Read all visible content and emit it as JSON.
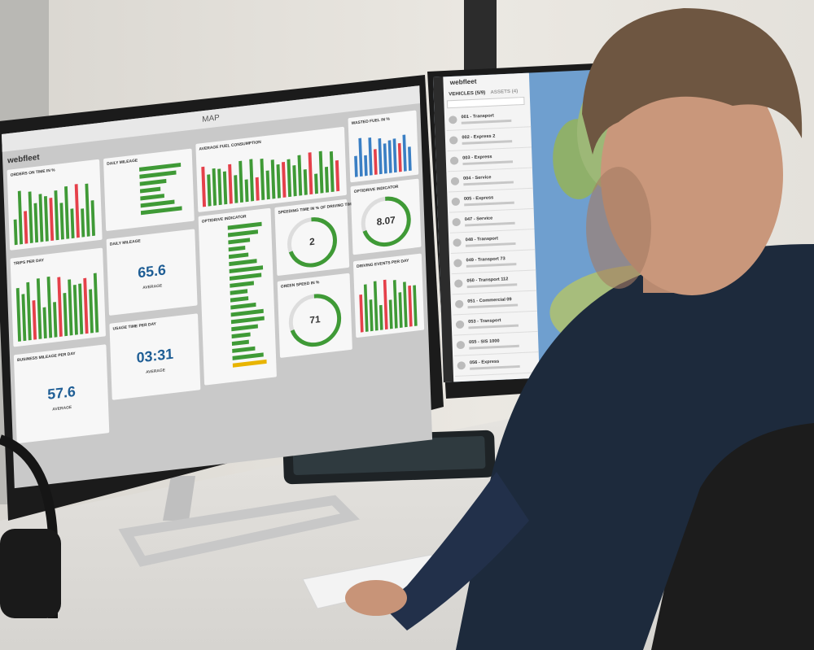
{
  "left_screen": {
    "title": "MAP",
    "brand": "webfleet",
    "tiles": [
      {
        "title": "ORDERS ON TIME IN %"
      },
      {
        "title": "DAILY MILEAGE"
      },
      {
        "title": "AVERAGE FUEL CONSUMPTION"
      },
      {
        "title": "WASTED FUEL IN %"
      },
      {
        "title": "TRIPS PER DAY"
      },
      {
        "title": "DAILY MILEAGE",
        "value": 65.6,
        "caption": "AVERAGE"
      },
      {
        "title": "OPTIDRIVE INDICATOR"
      },
      {
        "title": "SPEEDING TIME IN % OF DRIVING TIME",
        "value": 2
      },
      {
        "title": "OPTIDRIVE INDICATOR",
        "value": 8.07
      },
      {
        "title": "BUSINESS MILEAGE PER DAY",
        "value": 57.6,
        "caption": "AVERAGE"
      },
      {
        "title": "USAGE TIME PER DAY",
        "value": "03:31",
        "caption": "AVERAGE"
      },
      {
        "title": "GREEN SPEED IN %",
        "value": 71
      },
      {
        "title": "DRIVING EVENTS PER DAY"
      }
    ]
  },
  "right_screen": {
    "brand": "webfleet",
    "tabs": [
      "VEHICLES (5/9)",
      "ASSETS (4)"
    ],
    "vehicles": [
      "001 - Transport",
      "002 - Express 2",
      "003 - Express",
      "004 - Service",
      "005 - Express",
      "047 - Service",
      "048 - Transport",
      "049 - Transport 73",
      "050 - Transport 112",
      "051 - Commercial 09",
      "053 - Transport",
      "055 - SIS 1000",
      "056 - Express"
    ]
  }
}
